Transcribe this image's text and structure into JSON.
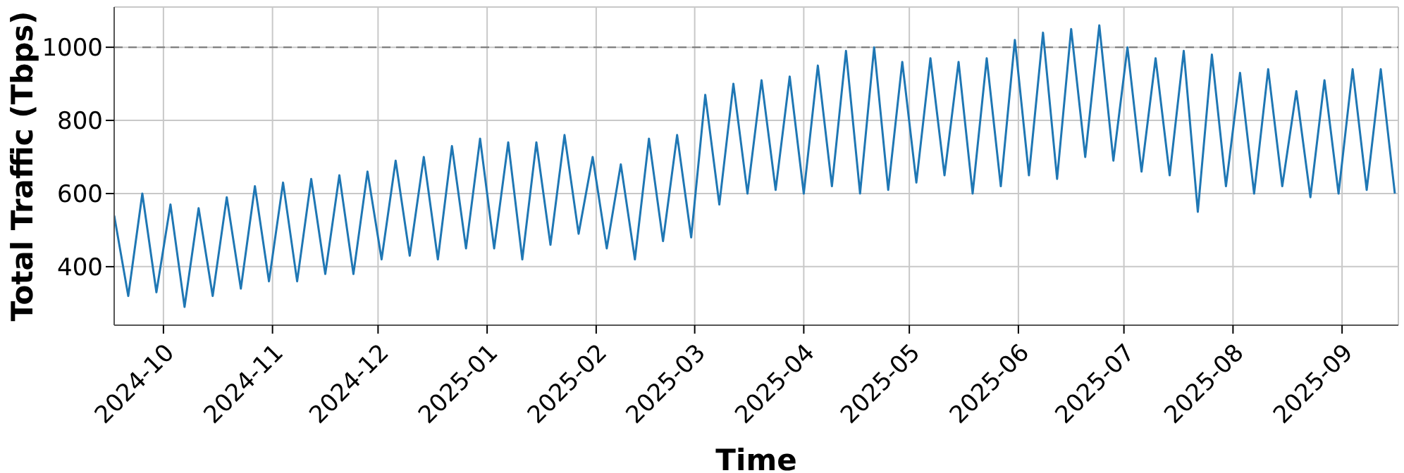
{
  "chart_data": {
    "type": "line",
    "xlabel": "Time",
    "ylabel": "Total Traffic (Tbps)",
    "x": [
      "2024-09-17",
      "2024-09-21",
      "2024-09-25",
      "2024-09-29",
      "2024-10-03",
      "2024-10-07",
      "2024-10-11",
      "2024-10-15",
      "2024-10-19",
      "2024-10-23",
      "2024-10-27",
      "2024-10-31",
      "2024-11-04",
      "2024-11-08",
      "2024-11-12",
      "2024-11-16",
      "2024-11-20",
      "2024-11-24",
      "2024-11-28",
      "2024-12-02",
      "2024-12-06",
      "2024-12-10",
      "2024-12-14",
      "2024-12-18",
      "2024-12-22",
      "2024-12-26",
      "2024-12-30",
      "2025-01-03",
      "2025-01-07",
      "2025-01-11",
      "2025-01-15",
      "2025-01-19",
      "2025-01-23",
      "2025-01-27",
      "2025-01-31",
      "2025-02-04",
      "2025-02-08",
      "2025-02-12",
      "2025-02-16",
      "2025-02-20",
      "2025-02-24",
      "2025-02-28",
      "2025-03-04",
      "2025-03-08",
      "2025-03-12",
      "2025-03-16",
      "2025-03-20",
      "2025-03-24",
      "2025-03-28",
      "2025-04-01",
      "2025-04-05",
      "2025-04-09",
      "2025-04-13",
      "2025-04-17",
      "2025-04-21",
      "2025-04-25",
      "2025-04-29",
      "2025-05-03",
      "2025-05-07",
      "2025-05-11",
      "2025-05-15",
      "2025-05-19",
      "2025-05-23",
      "2025-05-27",
      "2025-05-31",
      "2025-06-04",
      "2025-06-08",
      "2025-06-12",
      "2025-06-16",
      "2025-06-20",
      "2025-06-24",
      "2025-06-28",
      "2025-07-02",
      "2025-07-06",
      "2025-07-10",
      "2025-07-14",
      "2025-07-18",
      "2025-07-22",
      "2025-07-26",
      "2025-07-30",
      "2025-08-03",
      "2025-08-07",
      "2025-08-11",
      "2025-08-15",
      "2025-08-19",
      "2025-08-23",
      "2025-08-27",
      "2025-08-31",
      "2025-09-04",
      "2025-09-08",
      "2025-09-12",
      "2025-09-16"
    ],
    "series": [
      {
        "color": "#1f77b4",
        "values": [
          540,
          320,
          600,
          330,
          570,
          290,
          560,
          320,
          590,
          340,
          620,
          360,
          630,
          360,
          640,
          380,
          650,
          380,
          660,
          420,
          690,
          430,
          700,
          420,
          730,
          450,
          750,
          450,
          740,
          420,
          740,
          460,
          760,
          490,
          700,
          450,
          680,
          420,
          750,
          470,
          760,
          480,
          870,
          570,
          900,
          600,
          910,
          610,
          920,
          600,
          950,
          620,
          990,
          600,
          1000,
          610,
          960,
          630,
          970,
          650,
          960,
          600,
          970,
          620,
          1020,
          650,
          1040,
          640,
          1050,
          700,
          1060,
          690,
          1000,
          660,
          970,
          650,
          990,
          550,
          980,
          620,
          930,
          600,
          940,
          620,
          880,
          590,
          910,
          600,
          940,
          610,
          940,
          600
        ]
      }
    ],
    "xlim": [
      "2024-09-17",
      "2025-09-17"
    ],
    "xticks": [
      "2024-10",
      "2024-11",
      "2024-12",
      "2025-01",
      "2025-02",
      "2025-03",
      "2025-04",
      "2025-05",
      "2025-06",
      "2025-07",
      "2025-08",
      "2025-09"
    ],
    "ylim": [
      240,
      1110
    ],
    "yticks": [
      400,
      600,
      800,
      1000
    ],
    "grid": true,
    "line_style": "solid",
    "ref_lines": [
      {
        "axis": "y",
        "value": 1000,
        "color": "#808080",
        "line_style": "dashed"
      }
    ]
  }
}
